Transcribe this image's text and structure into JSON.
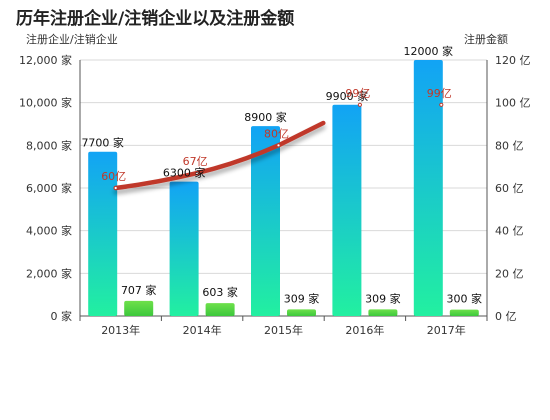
{
  "title": "历年注册企业/注销企业以及注册金额",
  "chart_data": {
    "type": "bar",
    "categories": [
      "2013年",
      "2014年",
      "2015年",
      "2016年",
      "2017年"
    ],
    "y_left": {
      "label": "注册企业/注销企业",
      "ylim": [
        0,
        12000
      ],
      "ticks": [
        0,
        2000,
        4000,
        6000,
        8000,
        10000,
        12000
      ],
      "tick_labels": [
        "0 家",
        "2,000 家",
        "4,000 家",
        "6,000 家",
        "8,000 家",
        "10,000 家",
        "12,000 家"
      ]
    },
    "y_right": {
      "label": "注册金额",
      "ylim": [
        0,
        120
      ],
      "ticks": [
        0,
        20,
        40,
        60,
        80,
        100,
        120
      ],
      "tick_labels": [
        "0 亿",
        "20 亿",
        "40 亿",
        "60 亿",
        "80 亿",
        "100 亿",
        "120 亿"
      ]
    },
    "series": [
      {
        "type": "bar",
        "axis": "left",
        "color": "#12a3f5",
        "color_end": "#22f0a0",
        "values": [
          7700,
          6300,
          8900,
          9900,
          12000
        ],
        "labels": [
          "7700 家",
          "6300 家",
          "8900 家",
          "9900 家",
          "12000 家"
        ]
      },
      {
        "type": "bar",
        "axis": "left",
        "color": "#6ee04b",
        "color_end": "#3cc83c",
        "values": [
          707,
          603,
          309,
          309,
          300
        ],
        "labels": [
          "707 家",
          "603 家",
          "309 家",
          "309 家",
          "300 家"
        ]
      },
      {
        "type": "line",
        "axis": "right",
        "color": "#c0392b",
        "values": [
          60,
          67,
          80,
          99,
          99
        ],
        "labels": [
          "60亿",
          "67亿",
          "80亿",
          "99亿",
          "99亿"
        ],
        "line_points": 3
      }
    ],
    "grid": true
  }
}
